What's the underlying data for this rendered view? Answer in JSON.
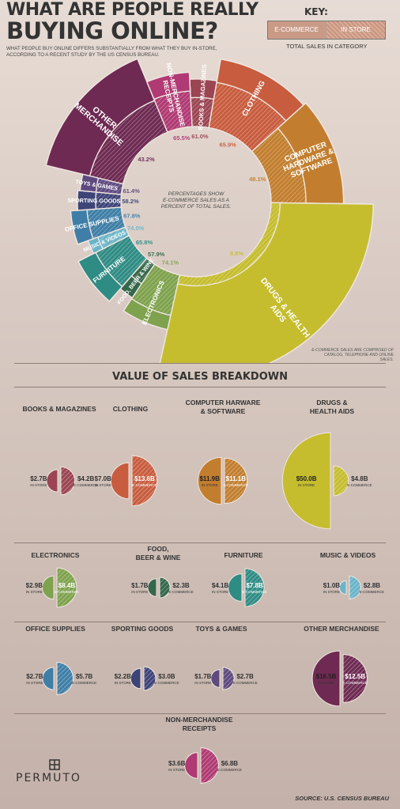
{
  "title": {
    "line1": "WHAT ARE PEOPLE REALLY",
    "line2": "BUYING ONLINE?",
    "subtitle": "WHAT PEOPLE BUY ONLINE DIFFERS SUBSTANTIALLY FROM WHAT THEY BUY IN-STORE, ACCORDING TO A RECENT STUDY BY THE US CENSUS BUREAU."
  },
  "key": {
    "title": "KEY:",
    "ecommerce_label": "E-COMMERCE",
    "instore_label": "IN STORE",
    "caption": "TOTAL SALES IN CATEGORY"
  },
  "donut_center_text": "PERCENTAGES SHOW E-COMMERCE SALES AS A PERCENT OF TOTAL SALES.",
  "note": "E-COMMERCE SALES ARE COMPRISED OF CATALOG, TELEPHONE AND ONLINE SALES.",
  "section_title": "VALUE OF SALES BREAKDOWN",
  "footer": {
    "logo": "PERMUTO",
    "source": "SOURCE: U.S. CENSUS BUREAU"
  },
  "colors": {
    "Books & Magazines": "#9b4552",
    "Clothing": "#c85c3e",
    "Computer Hardware & Software": "#c27e2e",
    "Drugs & Health Aids": "#c5bd2e",
    "Electronics": "#7ea24d",
    "Food, Beer & Wine": "#35684b",
    "Furniture": "#2f8c84",
    "Music & Videos": "#6ab4c8",
    "Office Supplies": "#3f7fa7",
    "Sporting Goods": "#3e4478",
    "Toys & Games": "#5e4a7f",
    "Other Merchandise": "#6e2a52",
    "Non-Merchandise Receipts": "#b03a73"
  },
  "chart_data": [
    {
      "type": "pie",
      "description_label": "E-commerce sales as percent of total sales, by category",
      "categories": [
        "Books & Magazines",
        "Clothing",
        "Computer Hardware & Software",
        "Drugs & Health Aids",
        "Electronics",
        "Food, Beer & Wine",
        "Furniture",
        "Music & Videos",
        "Office Supplies",
        "Sporting Goods",
        "Toys & Games",
        "Other Merchandise",
        "Non-Merchandise Receipts"
      ],
      "display_names": [
        "BOOKS & MAGAZINES",
        "CLOTHING",
        "COMPUTER HARDWARE & SOFTWARE",
        "DRUGS & HEALTH AIDS",
        "ELECTRONICS",
        "FOOD, BEER & WINE",
        "FURNITURE",
        "MUSIC & VIDEOS",
        "OFFICE SUPPLIES",
        "SPORTING GOODS",
        "TOYS & GAMES",
        "OTHER MERCHANDISE",
        "NON-MERCHANDISE RECEIPTS"
      ],
      "ecommerce_percent": [
        61.0,
        65.9,
        48.1,
        8.8,
        74.1,
        57.9,
        65.8,
        74.0,
        67.8,
        58.2,
        61.4,
        43.2,
        65.5
      ],
      "total_sales_billion": [
        6.9,
        20.6,
        23.0,
        54.8,
        11.3,
        4.0,
        11.9,
        3.8,
        8.4,
        5.2,
        4.4,
        29.1,
        10.4
      ]
    },
    {
      "type": "bar",
      "description_label": "Value of sales breakdown (billions USD)",
      "categories": [
        "BOOKS & MAGAZINES",
        "CLOTHING",
        "COMPUTER HARWARE & SOFTWARE",
        "DRUGS & HEALTH AIDS",
        "ELECTRONICS",
        "FOOD, BEER & WINE",
        "FURNITURE",
        "MUSIC & VIDEOS",
        "OFFICE SUPPLIES",
        "SPORTING GOODS",
        "TOYS & GAMES",
        "OTHER MERCHANDISE",
        "NON-MERCHANDISE RECEIPTS"
      ],
      "series": [
        {
          "name": "IN STORE",
          "values": [
            2.7,
            7.0,
            11.9,
            50.0,
            2.9,
            1.7,
            4.1,
            1.0,
            2.7,
            2.2,
            1.7,
            16.5,
            3.6
          ],
          "labels": [
            "$2.7B",
            "$7.0B",
            "$11.9B",
            "$50.0B",
            "$2.9B",
            "$1.7B",
            "$4.1B",
            "$1.0B",
            "$2.7B",
            "$2.2B",
            "$1.7B",
            "$16.5B",
            "$3.6B"
          ]
        },
        {
          "name": "E-COMMERCE",
          "values": [
            4.2,
            13.6,
            11.1,
            4.8,
            8.4,
            2.3,
            7.8,
            2.8,
            5.7,
            3.0,
            2.7,
            12.5,
            6.8
          ],
          "labels": [
            "$4.2B",
            "$13.6B",
            "$11.1B",
            "$4.8B",
            "$8.4B",
            "$2.3B",
            "$7.8B",
            "$2.8B",
            "$5.7B",
            "$3.0B",
            "$2.7B",
            "$12.5B",
            "$6.8B"
          ]
        }
      ],
      "value_unit_labels": {
        "instore": "IN STORE",
        "ecommerce": "E-COMMERCE"
      }
    }
  ]
}
